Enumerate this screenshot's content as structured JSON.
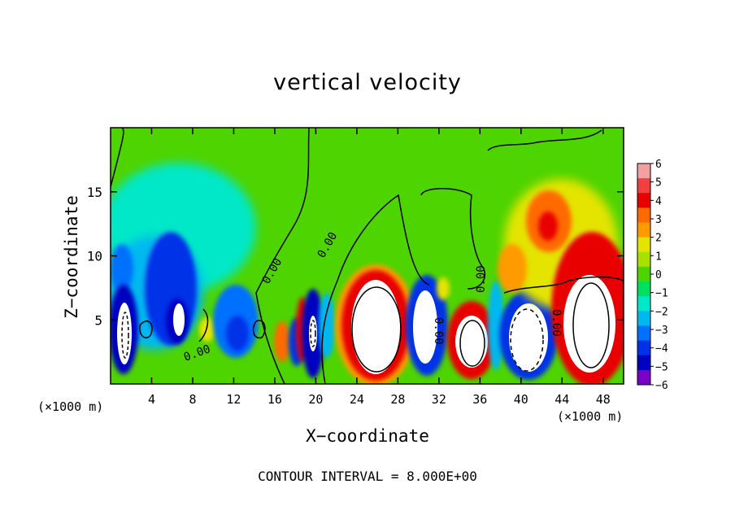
{
  "chart_data": {
    "type": "heatmap",
    "title": "vertical velocity",
    "xlabel": "X−coordinate",
    "ylabel": "Z−coordinate",
    "x_unit_label_left": "(×1000 m)",
    "x_unit_label_right": "(×1000 m)",
    "x_ticks": [
      4,
      8,
      12,
      16,
      20,
      24,
      28,
      32,
      36,
      40,
      44,
      48
    ],
    "y_ticks": [
      5,
      10,
      15
    ],
    "xlim": [
      0,
      50
    ],
    "ylim": [
      0,
      20
    ],
    "contour_interval_text": "CONTOUR INTERVAL = 8.000E+00",
    "contour_label": "0.00",
    "colorbar": {
      "ticks": [
        6,
        5,
        4,
        3,
        2,
        1,
        0,
        -1,
        -2,
        -3,
        -4,
        -5,
        -6
      ],
      "min": -6,
      "max": 6,
      "colors": [
        "#f2a0a0",
        "#f04040",
        "#e80000",
        "#ff6a00",
        "#ff9a00",
        "#e4e400",
        "#a8e000",
        "#4ed400",
        "#00e060",
        "#00e8c8",
        "#00b8f0",
        "#0070ff",
        "#0030e8",
        "#0000c0",
        "#7a00c8"
      ]
    },
    "features": [
      {
        "x": 1.5,
        "z": 3.6,
        "w": -6
      },
      {
        "x": 6.0,
        "z": 5.2,
        "w": -6
      },
      {
        "x": 6.0,
        "z": 8.0,
        "w": -4
      },
      {
        "x": 12.5,
        "z": 4.0,
        "w": -4
      },
      {
        "x": 19.0,
        "z": 4.5,
        "w": -5
      },
      {
        "x": 26.0,
        "z": 4.2,
        "w": 6
      },
      {
        "x": 30.5,
        "z": 4.0,
        "w": -6
      },
      {
        "x": 35.0,
        "z": 3.2,
        "w": 6
      },
      {
        "x": 40.5,
        "z": 3.6,
        "w": -6
      },
      {
        "x": 42.8,
        "z": 12.0,
        "w": 3
      },
      {
        "x": 47.0,
        "z": 4.8,
        "w": 6
      }
    ]
  }
}
